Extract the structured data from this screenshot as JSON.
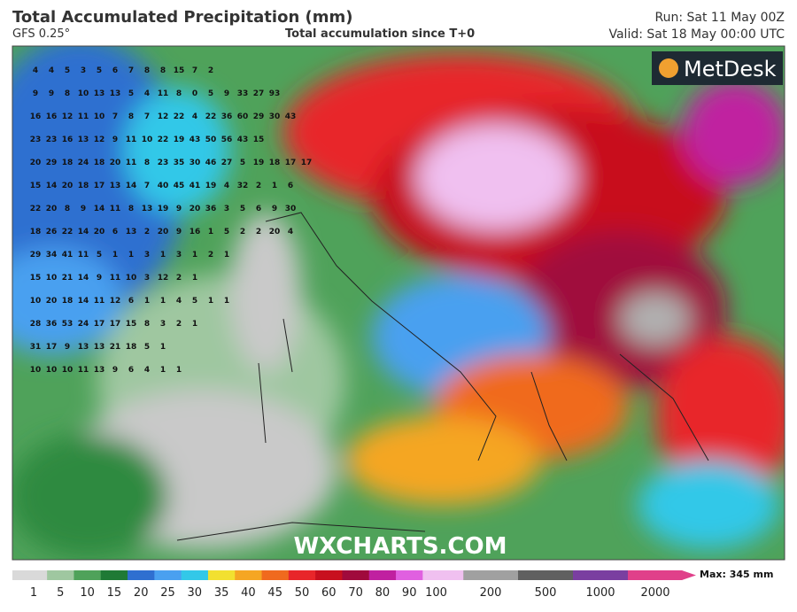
{
  "header": {
    "title": "Total Accumulated Precipitation (mm)",
    "model": "GFS 0.25°",
    "subtitle": "Total accumulation since T+0",
    "run": "Run: Sat 11 May 00Z",
    "valid": "Valid: Sat 18 May 00:00 UTC"
  },
  "logo": "MetDesk",
  "watermark": "WXCHARTS.COM",
  "map_values": [
    [
      4,
      4,
      5,
      3,
      5,
      6,
      7,
      8,
      8,
      15,
      7,
      2
    ],
    [
      9,
      9,
      8,
      10,
      13,
      13,
      5,
      4,
      11,
      8,
      0,
      5,
      9,
      33,
      27,
      93
    ],
    [
      16,
      16,
      12,
      11,
      10,
      7,
      8,
      7,
      12,
      22,
      4,
      22,
      36,
      60,
      29,
      30,
      43
    ],
    [
      23,
      23,
      16,
      13,
      12,
      9,
      11,
      10,
      22,
      19,
      43,
      50,
      56,
      43,
      15
    ],
    [
      20,
      29,
      18,
      24,
      18,
      20,
      11,
      8,
      23,
      35,
      30,
      46,
      27,
      5,
      19,
      18,
      17,
      17
    ],
    [
      15,
      14,
      20,
      18,
      17,
      13,
      14,
      7,
      40,
      45,
      41,
      19,
      4,
      32,
      2,
      1,
      6
    ],
    [
      22,
      20,
      8,
      9,
      14,
      11,
      8,
      13,
      19,
      9,
      20,
      36,
      3,
      5,
      6,
      9,
      30
    ],
    [
      18,
      26,
      22,
      14,
      20,
      6,
      13,
      2,
      20,
      9,
      16,
      1,
      5,
      2,
      2,
      20,
      4
    ],
    [
      29,
      34,
      41,
      11,
      5,
      1,
      1,
      3,
      1,
      3,
      1,
      2,
      1
    ],
    [
      15,
      10,
      21,
      14,
      9,
      11,
      10,
      3,
      12,
      2,
      1
    ],
    [
      10,
      20,
      18,
      14,
      11,
      12,
      6,
      1,
      1,
      4,
      5,
      1,
      1
    ],
    [
      28,
      36,
      53,
      24,
      17,
      17,
      15,
      8,
      3,
      2,
      1
    ],
    [
      31,
      17,
      9,
      13,
      13,
      21,
      18,
      5,
      1
    ],
    [
      10,
      10,
      10,
      11,
      13,
      9,
      6,
      4,
      1,
      1
    ]
  ],
  "legend": {
    "labels": [
      1,
      5,
      10,
      15,
      20,
      25,
      30,
      35,
      40,
      45,
      50,
      60,
      70,
      80,
      90,
      100,
      200,
      500,
      1000,
      2000
    ],
    "colors": [
      "#d9d9d9",
      "#9fc7a0",
      "#4fa25a",
      "#1f7a35",
      "#2f6fd0",
      "#4aa0f0",
      "#33c8e8",
      "#f2e030",
      "#f5a623",
      "#f06a1e",
      "#e8262a",
      "#c8101e",
      "#a00a3c",
      "#c020a0",
      "#e060e0",
      "#f0c0f0",
      "#a0a0a0",
      "#606060",
      "#7a3fa0",
      "#e0408a"
    ],
    "max": "Max: 345 mm"
  }
}
